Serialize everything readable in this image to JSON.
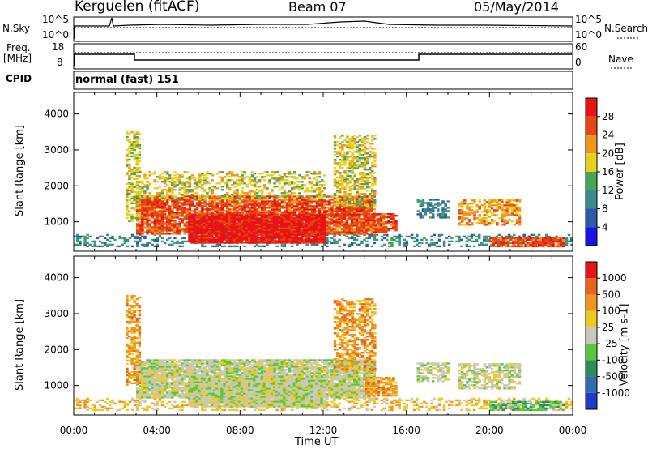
{
  "header": {
    "station": "Kerguelen (fitACF)",
    "beam": "Beam 07",
    "date": "05/May/2014"
  },
  "strip": {
    "nsky_label": "N.Sky",
    "nsky_ticks": [
      "10^5",
      "10^0"
    ],
    "nsearch_label": "N.Search",
    "freq_label_1": "Freq.",
    "freq_label_2": "[MHz]",
    "freq_ticks": [
      "18",
      "8"
    ],
    "nave_label": "Nave",
    "nave_ticks": [
      "60",
      "0"
    ],
    "cpid_label": "CPID",
    "cpid_text": "normal (fast) 151"
  },
  "chart_data": [
    {
      "type": "heatmap",
      "panel": "power",
      "ylabel": "Slant Range [km]",
      "yticks": [
        1000,
        2000,
        3000,
        4000
      ],
      "ylim": [
        180,
        4600
      ],
      "xlim": [
        0,
        24
      ],
      "colorbar": {
        "label": "Power [dB]",
        "ticks": [
          "4",
          "8",
          "12",
          "16",
          "20",
          "24",
          "28"
        ],
        "colors": [
          "#1414e6",
          "#2e5aa8",
          "#3d8c8c",
          "#46a55a",
          "#e6d21e",
          "#f0961e",
          "#e64614",
          "#e61414"
        ]
      },
      "regions": [
        {
          "t0": 0.0,
          "t1": 24.0,
          "r0": 300,
          "r1": 650,
          "level": 2,
          "density": 0.35
        },
        {
          "t0": 3.0,
          "t1": 14.5,
          "r0": 650,
          "r1": 1700,
          "level": 6,
          "density": 0.85
        },
        {
          "t0": 5.5,
          "t1": 12.0,
          "r0": 400,
          "r1": 1200,
          "level": 7,
          "density": 0.95
        },
        {
          "t0": 2.5,
          "t1": 3.2,
          "r0": 1000,
          "r1": 3500,
          "level": 4,
          "density": 0.5
        },
        {
          "t0": 3.0,
          "t1": 12.0,
          "r0": 1600,
          "r1": 2400,
          "level": 4,
          "density": 0.4
        },
        {
          "t0": 12.5,
          "t1": 14.5,
          "r0": 1400,
          "r1": 3400,
          "level": 4,
          "density": 0.55
        },
        {
          "t0": 14.0,
          "t1": 15.5,
          "r0": 700,
          "r1": 1200,
          "level": 6,
          "density": 0.8
        },
        {
          "t0": 16.5,
          "t1": 18.0,
          "r0": 1100,
          "r1": 1600,
          "level": 2,
          "density": 0.6
        },
        {
          "t0": 18.5,
          "t1": 21.5,
          "r0": 900,
          "r1": 1600,
          "level": 5,
          "density": 0.6
        },
        {
          "t0": 20.0,
          "t1": 23.5,
          "r0": 300,
          "r1": 550,
          "level": 6,
          "density": 0.85
        }
      ]
    },
    {
      "type": "heatmap",
      "panel": "velocity",
      "ylabel": "Slant Range [km]",
      "xlabel": "Time UT",
      "yticks": [
        1000,
        2000,
        3000,
        4000
      ],
      "xticks": [
        "00:00",
        "04:00",
        "08:00",
        "12:00",
        "16:00",
        "20:00",
        "00:00"
      ],
      "ylim": [
        180,
        4600
      ],
      "xlim": [
        0,
        24
      ],
      "colorbar": {
        "label": "Velocity [m s-1]",
        "ticks": [
          "1000",
          "500",
          "100",
          "25",
          "-25",
          "-100",
          "-500",
          "-1000"
        ],
        "colors": [
          "#1e3cc8",
          "#2e6eaa",
          "#2e8c5a",
          "#5ac83c",
          "#c8c8c0",
          "#f0c81e",
          "#f0961e",
          "#e6641e",
          "#e61414"
        ]
      },
      "regions": [
        {
          "t0": 0.0,
          "t1": 24.0,
          "r0": 300,
          "r1": 650,
          "level": 5,
          "density": 0.35
        },
        {
          "t0": 3.0,
          "t1": 14.5,
          "r0": 650,
          "r1": 1700,
          "level": 4,
          "density": 0.9
        },
        {
          "t0": 5.5,
          "t1": 12.0,
          "r0": 400,
          "r1": 1200,
          "level": 4,
          "density": 0.95
        },
        {
          "t0": 2.5,
          "t1": 3.2,
          "r0": 1000,
          "r1": 3500,
          "level": 6,
          "density": 0.5
        },
        {
          "t0": 12.5,
          "t1": 14.5,
          "r0": 1400,
          "r1": 3400,
          "level": 6,
          "density": 0.55
        },
        {
          "t0": 14.0,
          "t1": 15.5,
          "r0": 700,
          "r1": 1200,
          "level": 6,
          "density": 0.75
        },
        {
          "t0": 16.5,
          "t1": 18.0,
          "r0": 1100,
          "r1": 1600,
          "level": 4,
          "density": 0.6
        },
        {
          "t0": 18.5,
          "t1": 21.5,
          "r0": 900,
          "r1": 1600,
          "level": 4,
          "density": 0.6
        },
        {
          "t0": 20.0,
          "t1": 23.5,
          "r0": 300,
          "r1": 550,
          "level": 3,
          "density": 0.7
        }
      ]
    }
  ]
}
